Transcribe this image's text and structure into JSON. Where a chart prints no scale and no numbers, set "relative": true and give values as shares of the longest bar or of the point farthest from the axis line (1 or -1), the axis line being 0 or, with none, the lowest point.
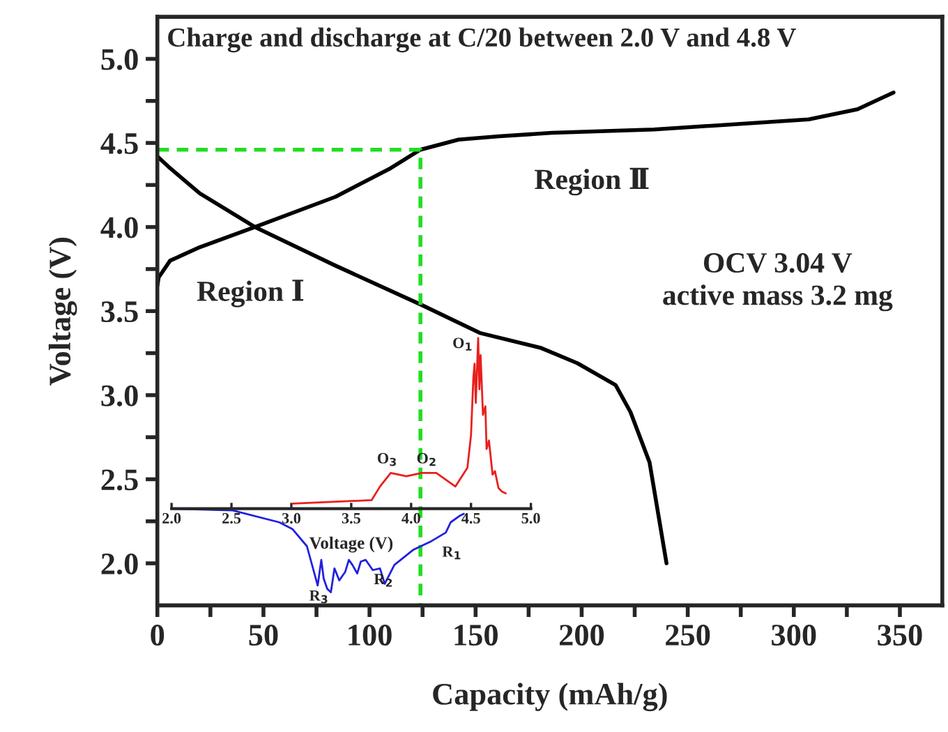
{
  "chart_data": [
    {
      "type": "line",
      "title": "Charge and discharge at C/20 between 2.0 V and 4.8 V",
      "xlabel": "Capacity (mAh/g)",
      "ylabel": "Voltage (V)",
      "xlim": [
        0,
        370
      ],
      "ylim": [
        1.75,
        5.25
      ],
      "xticks": [
        0,
        {
          "value": 25,
          "label": null
        },
        50,
        {
          "value": 75,
          "label": null
        },
        100,
        {
          "value": 125,
          "label": null
        },
        150,
        {
          "value": 175,
          "label": null
        },
        200,
        {
          "value": 225,
          "label": null
        },
        250,
        {
          "value": 275,
          "label": null
        },
        300,
        {
          "value": 325,
          "label": null
        },
        350
      ],
      "yticks": [
        {
          "value": 2.0,
          "label": "2.0"
        },
        {
          "value": 2.25,
          "label": null
        },
        {
          "value": 2.5,
          "label": "2.5"
        },
        {
          "value": 2.75,
          "label": null
        },
        {
          "value": 3.0,
          "label": "3.0"
        },
        {
          "value": 3.25,
          "label": null
        },
        {
          "value": 3.5,
          "label": "3.5"
        },
        {
          "value": 3.75,
          "label": null
        },
        {
          "value": 4.0,
          "label": "4.0"
        },
        {
          "value": 4.25,
          "label": null
        },
        {
          "value": 4.5,
          "label": "4.5"
        },
        {
          "value": 4.75,
          "label": null
        },
        {
          "value": 5.0,
          "label": "5.0"
        }
      ],
      "grid": false,
      "legend": false,
      "series": [
        {
          "color": "#000000",
          "x": [
            0,
            0.6,
            6,
            20,
            46,
            84,
            110,
            124,
            142,
            161,
            186,
            234,
            307,
            330,
            347
          ],
          "values": [
            3.65,
            3.7,
            3.8,
            3.88,
            4.0,
            4.18,
            4.35,
            4.46,
            4.52,
            4.54,
            4.56,
            4.58,
            4.64,
            4.7,
            4.8
          ]
        },
        {
          "color": "#000000",
          "x": [
            0,
            6,
            20,
            46,
            84,
            124,
            152,
            181,
            198,
            216,
            223,
            232,
            240
          ],
          "values": [
            4.42,
            4.35,
            4.2,
            4.0,
            3.77,
            3.54,
            3.37,
            3.28,
            3.19,
            3.06,
            2.9,
            2.6,
            2.0
          ]
        },
        {
          "color": "#22dd22",
          "line_style": "dashed",
          "x": [
            0,
            124,
            124
          ],
          "values": [
            4.46,
            4.46,
            1.75
          ]
        }
      ],
      "annotations": [
        "Region Ⅰ",
        "Region Ⅱ",
        "OCV 3.04 V\nactive mass 3.2 mg"
      ]
    },
    {
      "type": "line",
      "relative": true,
      "xlabel": "Voltage (V)",
      "tick_labels": "x",
      "xlim": [
        2.0,
        5.0
      ],
      "xticks": [
        {
          "value": 2.0,
          "label": "2.0"
        },
        {
          "value": 2.5,
          "label": "2.5"
        },
        {
          "value": 3.0,
          "label": "3.0"
        },
        {
          "value": 3.5,
          "label": "3.5"
        },
        {
          "value": 4.0,
          "label": "4.0"
        },
        {
          "value": 4.5,
          "label": "4.5"
        },
        {
          "value": 5.0,
          "label": "5.0"
        }
      ],
      "series": [
        {
          "color": "#e8201c",
          "x": [
            3.01,
            3.67,
            3.74,
            3.83,
            3.96,
            4.09,
            4.21,
            4.37,
            4.47,
            4.5,
            4.52,
            4.53,
            4.54,
            4.56,
            4.57,
            4.58,
            4.6,
            4.62,
            4.63,
            4.65,
            4.68,
            4.7,
            4.73,
            4.76,
            4.79
          ],
          "values": [
            0.03,
            0.05,
            0.13,
            0.21,
            0.19,
            0.21,
            0.21,
            0.13,
            0.24,
            0.43,
            0.77,
            0.85,
            0.62,
            1.0,
            0.7,
            0.9,
            0.55,
            0.6,
            0.35,
            0.4,
            0.2,
            0.22,
            0.12,
            0.1,
            0.09
          ]
        },
        {
          "color": "#2020e0",
          "x": [
            2.0,
            2.51,
            2.9,
            3.01,
            3.13,
            3.22,
            3.25,
            3.27,
            3.3,
            3.33,
            3.36,
            3.4,
            3.45,
            3.48,
            3.51,
            3.55,
            3.58,
            3.62,
            3.68,
            3.74,
            3.78,
            3.86,
            4.02,
            4.17,
            4.29,
            4.33,
            4.41,
            4.44
          ],
          "values": [
            0.0,
            -0.01,
            -0.08,
            -0.12,
            -0.22,
            -0.45,
            -0.3,
            -0.41,
            -0.47,
            -0.49,
            -0.35,
            -0.42,
            -0.37,
            -0.3,
            -0.33,
            -0.38,
            -0.31,
            -0.3,
            -0.36,
            -0.35,
            -0.44,
            -0.33,
            -0.24,
            -0.19,
            -0.14,
            -0.08,
            -0.04,
            -0.03
          ]
        }
      ],
      "annotations": [
        "O$_{1}$",
        "O$_{2}$",
        "O$_{3}$",
        "R$_{1}$",
        "R$_{2}$",
        "R$_{3}$"
      ]
    }
  ]
}
